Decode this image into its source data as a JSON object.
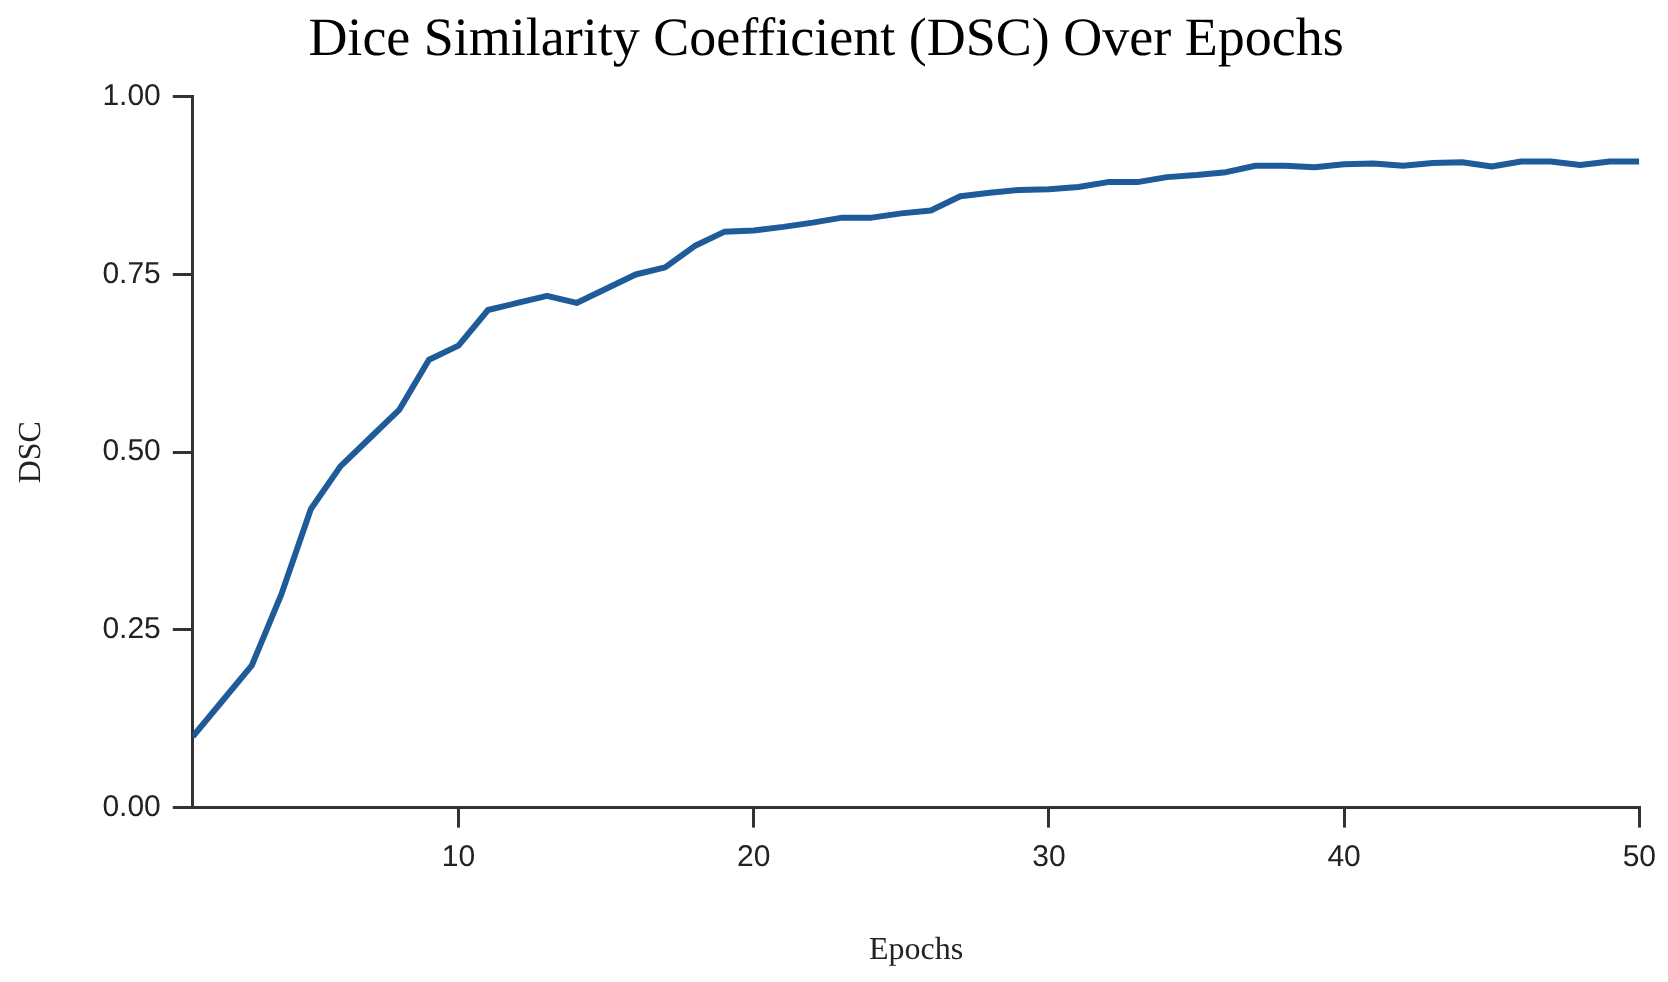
{
  "chart_data": {
    "type": "line",
    "title": "Dice Similarity Coefficient (DSC) Over Epochs",
    "xlabel": "Epochs",
    "ylabel": "DSC",
    "x": [
      1,
      2,
      3,
      4,
      5,
      6,
      7,
      8,
      9,
      10,
      11,
      12,
      13,
      14,
      15,
      16,
      17,
      18,
      19,
      20,
      21,
      22,
      23,
      24,
      25,
      26,
      27,
      28,
      29,
      30,
      31,
      32,
      33,
      34,
      35,
      36,
      37,
      38,
      39,
      40,
      41,
      42,
      43,
      44,
      45,
      46,
      47,
      48,
      49,
      50
    ],
    "series": [
      {
        "color": "#1f5a99",
        "values": [
          0.1,
          0.15,
          0.2,
          0.3,
          0.42,
          0.48,
          0.52,
          0.56,
          0.63,
          0.65,
          0.7,
          0.71,
          0.72,
          0.71,
          0.73,
          0.75,
          0.76,
          0.79,
          0.81,
          0.812,
          0.817,
          0.823,
          0.83,
          0.83,
          0.836,
          0.84,
          0.86,
          0.865,
          0.869,
          0.87,
          0.873,
          0.88,
          0.88,
          0.887,
          0.89,
          0.894,
          0.903,
          0.903,
          0.901,
          0.905,
          0.906,
          0.903,
          0.907,
          0.908,
          0.902,
          0.909,
          0.909,
          0.904,
          0.909,
          0.909
        ]
      }
    ],
    "xlim": [
      1,
      50
    ],
    "xticks": [
      10,
      20,
      30,
      40,
      50
    ],
    "ylim": [
      0,
      1
    ],
    "yticks": [
      {
        "value": 0,
        "label": "0.00"
      },
      {
        "value": 0.25,
        "label": "0.25"
      },
      {
        "value": 0.5,
        "label": "0.50"
      },
      {
        "value": 0.75,
        "label": "0.75"
      },
      {
        "value": 1,
        "label": "1.00"
      }
    ],
    "grid": false,
    "legend": false,
    "marker": "none",
    "line_style": "solid"
  }
}
